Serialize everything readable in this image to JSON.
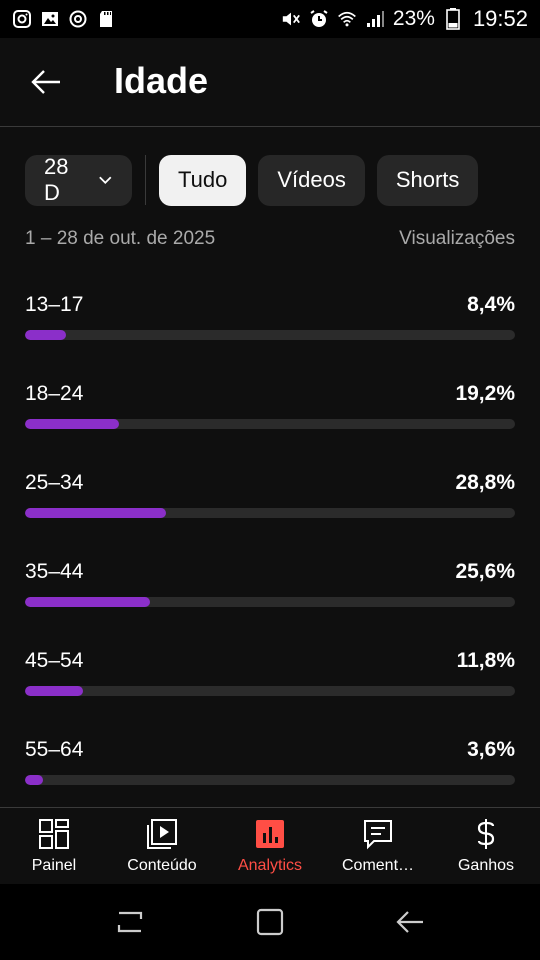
{
  "status_bar": {
    "left_icons": [
      "instagram-icon",
      "gallery-icon",
      "sync-icon",
      "sd-card-icon"
    ],
    "right_icons": [
      "mute-icon",
      "alarm-icon",
      "wifi-icon",
      "signal-icon",
      "battery-icon"
    ],
    "battery": "23%",
    "time": "19:52"
  },
  "header": {
    "back_icon": "arrow-left-icon",
    "title": "Idade"
  },
  "filters": {
    "period": "28 D",
    "chips": [
      {
        "label": "Tudo",
        "active": true
      },
      {
        "label": "Vídeos",
        "active": false
      },
      {
        "label": "Shorts",
        "active": false
      }
    ]
  },
  "summary": {
    "date_range": "1 – 28 de out. de 2025",
    "metric": "Visualizações"
  },
  "accent_color": "#8b2fc9",
  "age_groups": [
    {
      "label": "13–17",
      "value": "8,4%",
      "percent": 8.4
    },
    {
      "label": "18–24",
      "value": "19,2%",
      "percent": 19.2
    },
    {
      "label": "25–34",
      "value": "28,8%",
      "percent": 28.8
    },
    {
      "label": "35–44",
      "value": "25,6%",
      "percent": 25.6
    },
    {
      "label": "45–54",
      "value": "11,8%",
      "percent": 11.8
    },
    {
      "label": "55–64",
      "value": "3,6%",
      "percent": 3.6
    }
  ],
  "bottom_nav": [
    {
      "label": "Painel",
      "icon": "dashboard-icon",
      "active": false
    },
    {
      "label": "Conteúdo",
      "icon": "content-icon",
      "active": false
    },
    {
      "label": "Analytics",
      "icon": "analytics-icon",
      "active": true
    },
    {
      "label": "Coment…",
      "icon": "comments-icon",
      "active": false
    },
    {
      "label": "Ganhos",
      "icon": "earnings-icon",
      "active": false
    }
  ],
  "system_nav": [
    "recents-icon",
    "home-icon",
    "back-icon"
  ]
}
